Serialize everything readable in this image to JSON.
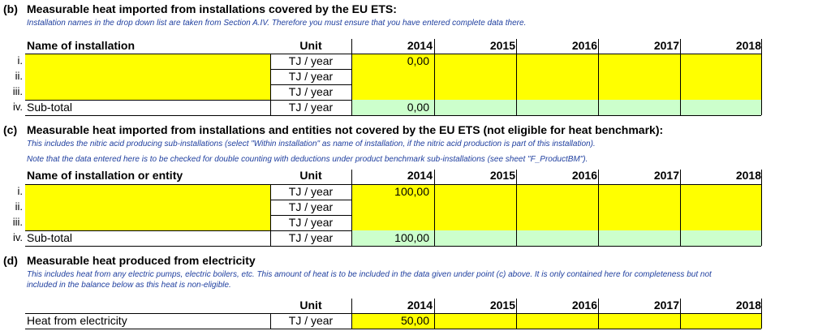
{
  "sections": {
    "b": {
      "label": "(b)",
      "title": "Measurable heat imported from installations covered by the EU ETS:",
      "notes": [
        "Installation names in the drop down list are taken from Section A.IV. Therefore you must ensure that you have entered complete data there."
      ],
      "name_header": "Name of installation",
      "unit_header": "Unit",
      "years": [
        "2014",
        "2015",
        "2016",
        "2017",
        "2018"
      ],
      "rows": [
        {
          "num": "i.",
          "name": "",
          "unit": "TJ / year",
          "values": [
            "0,00",
            "",
            "",
            "",
            ""
          ]
        },
        {
          "num": "ii.",
          "name": "",
          "unit": "TJ / year",
          "values": [
            "",
            "",
            "",
            "",
            ""
          ]
        },
        {
          "num": "iii.",
          "name": "",
          "unit": "TJ / year",
          "values": [
            "",
            "",
            "",
            "",
            ""
          ]
        },
        {
          "num": "iv.",
          "name": "Sub-total",
          "unit": "TJ / year",
          "values": [
            "0,00",
            "",
            "",
            "",
            ""
          ]
        }
      ]
    },
    "c": {
      "label": "(c)",
      "title": "Measurable heat imported from installations and entities not covered by the EU ETS (not eligible for heat benchmark):",
      "notes": [
        "This includes the nitric acid producing sub-installations (select \"Within installation\" as name of installation, if the nitric acid production is part of this installation).",
        "Note that the data entered here is to be checked for double counting with deductions under product benchmark sub-installations (see sheet \"F_ProductBM\")."
      ],
      "name_header": "Name of installation or entity",
      "unit_header": "Unit",
      "years": [
        "2014",
        "2015",
        "2016",
        "2017",
        "2018"
      ],
      "rows": [
        {
          "num": "i.",
          "name": "",
          "unit": "TJ / year",
          "values": [
            "100,00",
            "",
            "",
            "",
            ""
          ]
        },
        {
          "num": "ii.",
          "name": "",
          "unit": "TJ / year",
          "values": [
            "",
            "",
            "",
            "",
            ""
          ]
        },
        {
          "num": "iii.",
          "name": "",
          "unit": "TJ / year",
          "values": [
            "",
            "",
            "",
            "",
            ""
          ]
        },
        {
          "num": "iv.",
          "name": "Sub-total",
          "unit": "TJ / year",
          "values": [
            "100,00",
            "",
            "",
            "",
            ""
          ]
        }
      ]
    },
    "d": {
      "label": "(d)",
      "title": "Measurable heat produced from electricity",
      "notes": [
        "This includes heat from any electric pumps, electric boilers, etc. This amount of heat is to be included in the data given under point (c) above. It is only contained here for completeness but not",
        "included in the balance below as this heat is non-eligible."
      ],
      "unit_header": "Unit",
      "years": [
        "2014",
        "2015",
        "2016",
        "2017",
        "2018"
      ],
      "row": {
        "name": "Heat from electricity",
        "unit": "TJ / year",
        "values": [
          "50,00",
          "",
          "",
          "",
          ""
        ]
      }
    }
  },
  "colors": {
    "input": "#ffff00",
    "calc": "#ccffcc",
    "note": "#1f3f9f"
  }
}
